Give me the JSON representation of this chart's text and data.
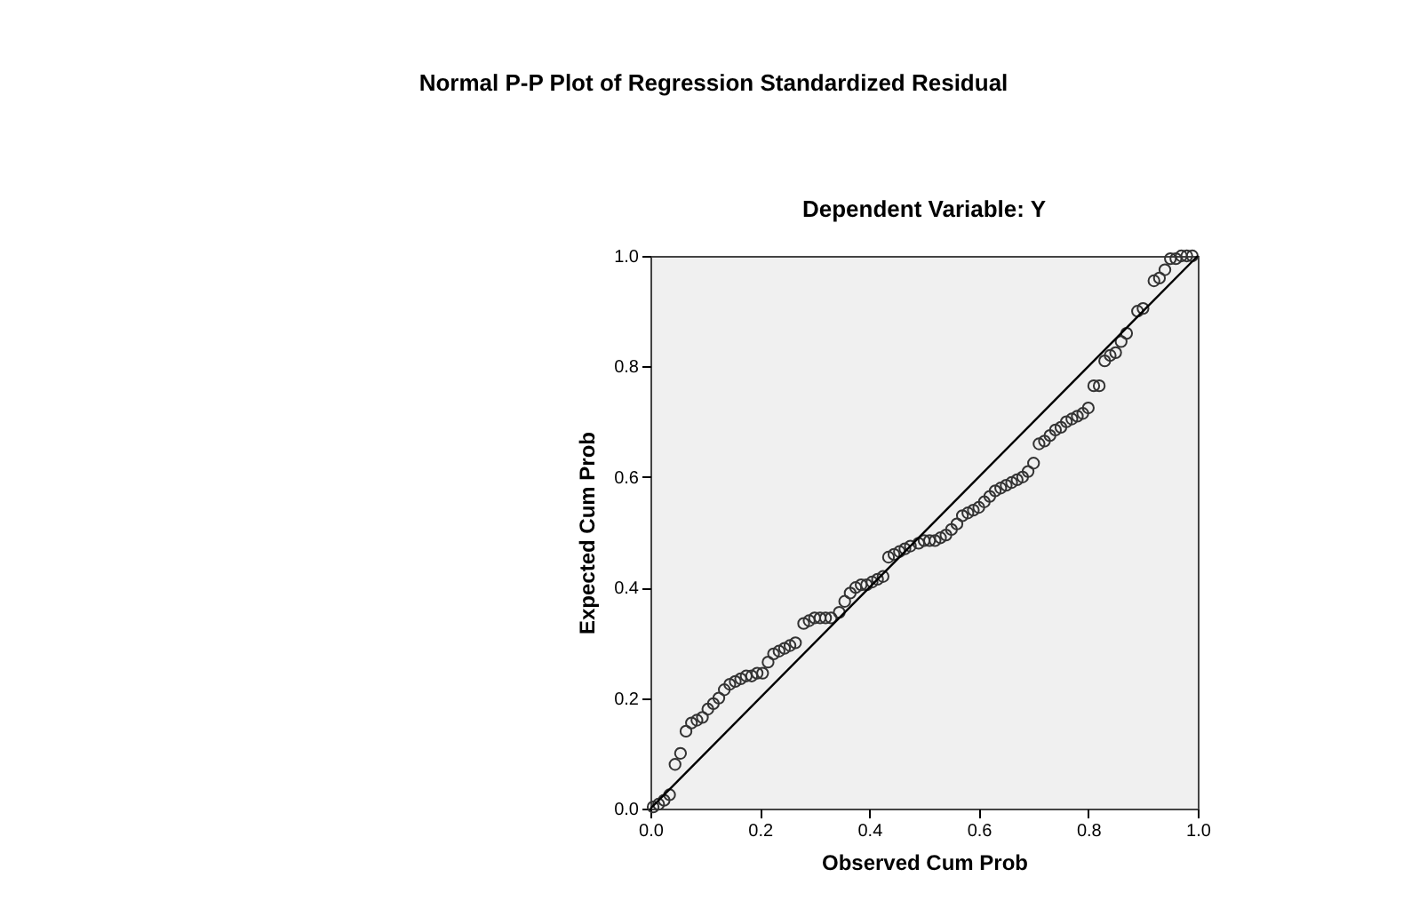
{
  "chart_data": {
    "type": "scatter",
    "title": "Normal P-P Plot of Regression Standardized Residual",
    "subtitle": "Dependent Variable: Y",
    "xlabel": "Observed Cum Prob",
    "ylabel": "Expected Cum Prob",
    "xlim": [
      0,
      1
    ],
    "ylim": [
      0,
      1
    ],
    "xticks": [
      {
        "value": 0,
        "label": "0.0"
      },
      0.2,
      0.4,
      0.6,
      0.8,
      {
        "value": 1,
        "label": "1.0"
      }
    ],
    "yticks": [
      {
        "value": 0,
        "label": "0.0"
      },
      0.2,
      0.4,
      0.6,
      0.8,
      {
        "value": 1,
        "label": "1.0"
      }
    ],
    "grid": false,
    "legend": false,
    "series": [
      {
        "marker": "circle",
        "color": "#333333",
        "x": [
          0.005,
          0.015,
          0.025,
          0.035,
          0.045,
          0.055,
          0.065,
          0.075,
          0.085,
          0.095,
          0.105,
          0.115,
          0.125,
          0.135,
          0.145,
          0.155,
          0.165,
          0.175,
          0.185,
          0.195,
          0.205,
          0.215,
          0.225,
          0.235,
          0.245,
          0.255,
          0.265,
          0.28,
          0.29,
          0.3,
          0.31,
          0.32,
          0.33,
          0.345,
          0.355,
          0.365,
          0.375,
          0.385,
          0.395,
          0.405,
          0.415,
          0.425,
          0.435,
          0.445,
          0.455,
          0.465,
          0.475,
          0.49,
          0.5,
          0.51,
          0.52,
          0.53,
          0.54,
          0.55,
          0.56,
          0.57,
          0.58,
          0.59,
          0.6,
          0.61,
          0.62,
          0.63,
          0.64,
          0.65,
          0.66,
          0.67,
          0.68,
          0.69,
          0.7,
          0.71,
          0.72,
          0.73,
          0.74,
          0.75,
          0.76,
          0.77,
          0.78,
          0.79,
          0.8,
          0.81,
          0.82,
          0.83,
          0.84,
          0.85,
          0.86,
          0.87,
          0.89,
          0.9,
          0.92,
          0.93,
          0.94,
          0.95,
          0.96,
          0.97,
          0.98,
          0.99
        ],
        "values": [
          0.003,
          0.008,
          0.015,
          0.025,
          0.08,
          0.1,
          0.14,
          0.155,
          0.16,
          0.165,
          0.18,
          0.19,
          0.2,
          0.215,
          0.225,
          0.23,
          0.235,
          0.24,
          0.24,
          0.245,
          0.245,
          0.265,
          0.28,
          0.285,
          0.29,
          0.295,
          0.3,
          0.335,
          0.34,
          0.345,
          0.345,
          0.345,
          0.345,
          0.355,
          0.375,
          0.39,
          0.4,
          0.405,
          0.405,
          0.41,
          0.415,
          0.42,
          0.455,
          0.46,
          0.465,
          0.47,
          0.475,
          0.48,
          0.485,
          0.485,
          0.485,
          0.49,
          0.495,
          0.505,
          0.515,
          0.53,
          0.535,
          0.54,
          0.545,
          0.555,
          0.565,
          0.575,
          0.58,
          0.585,
          0.59,
          0.595,
          0.6,
          0.61,
          0.625,
          0.66,
          0.665,
          0.675,
          0.685,
          0.69,
          0.7,
          0.705,
          0.71,
          0.715,
          0.725,
          0.765,
          0.765,
          0.81,
          0.82,
          0.825,
          0.845,
          0.86,
          0.9,
          0.905,
          0.955,
          0.96,
          0.975,
          0.995,
          0.995,
          1.0,
          1.0,
          1.0
        ]
      },
      {
        "type": "line",
        "color": "#000000",
        "x": [
          0,
          1
        ],
        "values": [
          0,
          1
        ]
      }
    ]
  }
}
